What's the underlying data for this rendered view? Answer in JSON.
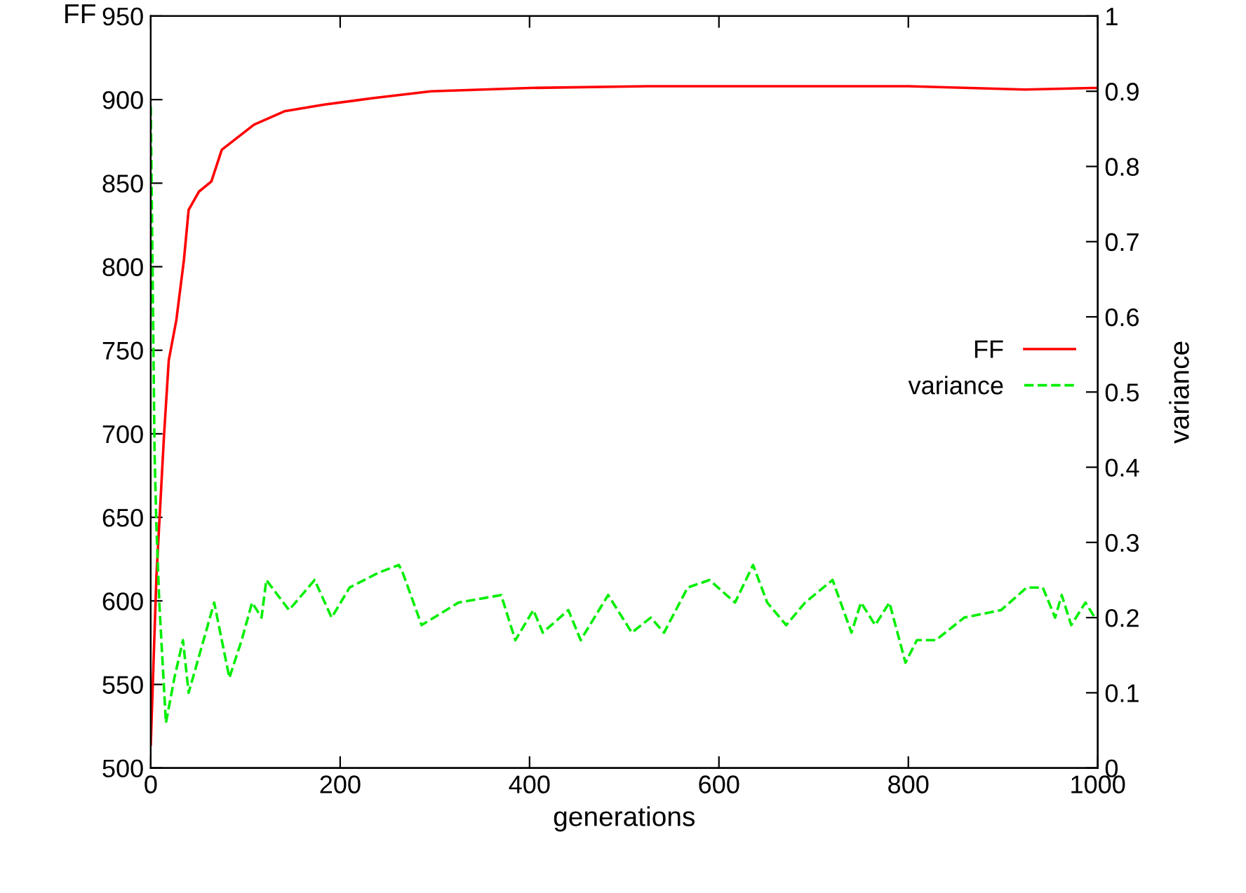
{
  "chart_data": {
    "type": "line",
    "xlabel": "generations",
    "ylabel": "FF",
    "y2label": "variance",
    "xlim": [
      0,
      1000
    ],
    "xticks": [
      0,
      200,
      400,
      600,
      800,
      1000
    ],
    "ylim": [
      500,
      950
    ],
    "yticks": [
      500,
      550,
      600,
      650,
      700,
      750,
      800,
      850,
      900,
      950
    ],
    "y2lim": [
      0,
      1
    ],
    "y2ticks": [
      0,
      {
        "value": 0.1,
        "label": "0.1"
      },
      {
        "value": 0.2,
        "label": "0.2"
      },
      {
        "value": 0.3,
        "label": "0.3"
      },
      {
        "value": 0.4,
        "label": "0.4"
      },
      {
        "value": 0.5,
        "label": "0.5"
      },
      {
        "value": 0.6,
        "label": "0.6"
      },
      {
        "value": 0.7,
        "label": "0.7"
      },
      {
        "value": 0.8,
        "label": "0.8"
      },
      {
        "value": 0.9,
        "label": "0.9"
      },
      1
    ],
    "legend": "right",
    "grid": false,
    "series": [
      {
        "name": "FF",
        "color": "#ff0000",
        "line_style": "solid",
        "x": [
          0,
          6,
          14,
          19,
          27,
          35,
          40,
          51,
          64,
          75,
          109,
          141,
          183,
          236,
          296,
          400,
          525,
          668,
          800,
          923,
          994,
          1000
        ],
        "values": [
          514,
          615,
          699,
          744,
          768,
          804,
          834,
          845,
          851,
          870,
          885,
          893,
          897,
          901,
          905,
          907,
          908,
          908,
          908,
          906,
          907,
          907
        ]
      },
      {
        "name": "variance",
        "color": "#00ee00",
        "line_style": "dashed",
        "axis": "y2",
        "x": [
          0,
          4,
          6,
          9,
          16,
          25,
          34,
          40,
          67,
          83,
          96,
          107,
          117,
          122,
          146,
          173,
          191,
          210,
          241,
          262,
          266,
          286,
          325,
          370,
          385,
          404,
          414,
          441,
          454,
          483,
          508,
          528,
          542,
          567,
          590,
          617,
          636,
          651,
          671,
          691,
          720,
          740,
          750,
          765,
          780,
          797,
          809,
          829,
          859,
          898,
          925,
          942,
          955,
          962,
          972,
          987,
          997
        ],
        "values": [
          0.88,
          0.42,
          0.32,
          0.22,
          0.06,
          0.12,
          0.17,
          0.1,
          0.22,
          0.12,
          0.17,
          0.22,
          0.2,
          0.25,
          0.21,
          0.25,
          0.2,
          0.24,
          0.26,
          0.27,
          0.26,
          0.19,
          0.22,
          0.23,
          0.17,
          0.21,
          0.18,
          0.21,
          0.17,
          0.23,
          0.18,
          0.2,
          0.18,
          0.24,
          0.25,
          0.22,
          0.27,
          0.22,
          0.19,
          0.22,
          0.25,
          0.18,
          0.22,
          0.19,
          0.22,
          0.14,
          0.17,
          0.17,
          0.2,
          0.21,
          0.24,
          0.24,
          0.2,
          0.23,
          0.19,
          0.22,
          0.2
        ]
      }
    ]
  }
}
